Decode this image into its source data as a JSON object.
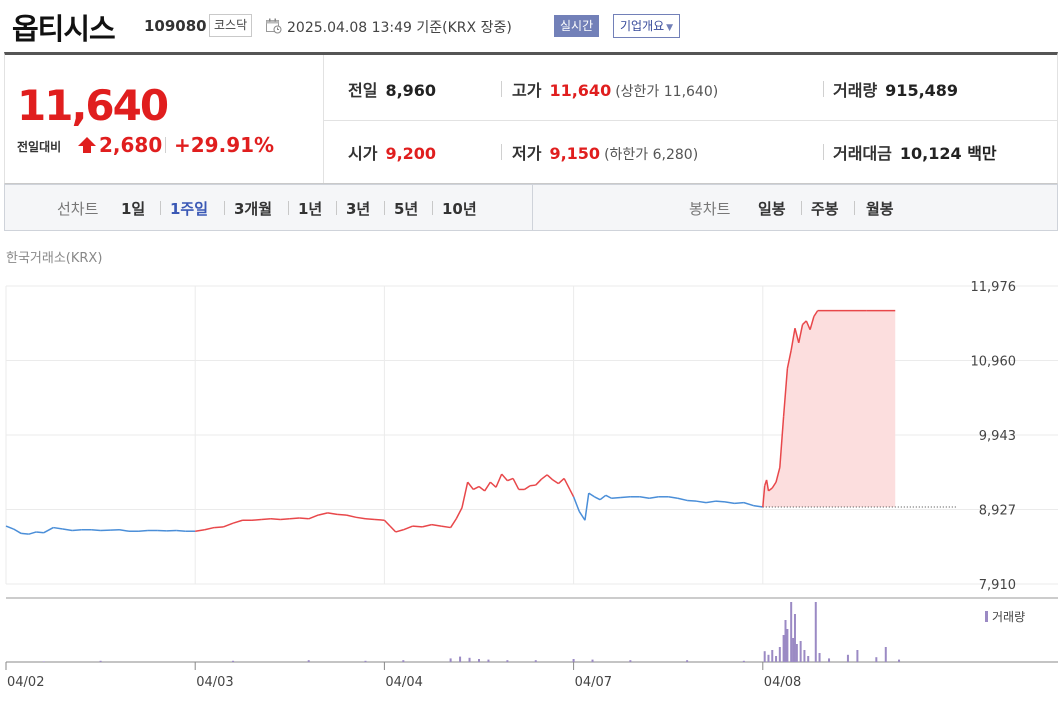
{
  "header": {
    "stock_name": "옵티시스",
    "stock_code": "109080",
    "market": "코스닥",
    "datetime": "2025.04.08 13:49  기준(KRX 장중)",
    "realtime_label": "실시간",
    "overview_label": "기업개요",
    "calendar_icon": "calendar-icon",
    "dropdown_icon": "caret-down-icon"
  },
  "quote": {
    "price": "11,640",
    "change_label": "전일대비",
    "change_icon": "upper-limit-arrow-icon",
    "change_value": "2,680",
    "change_pct": "+29.91%",
    "prev_close_label": "전일",
    "prev_close": "8,960",
    "open_label": "시가",
    "open": "9,200",
    "high_label": "고가",
    "high": "11,640",
    "upper_limit": "(상한가 11,640)",
    "low_label": "저가",
    "low": "9,150",
    "lower_limit": "(하한가 6,280)",
    "volume_label": "거래량",
    "volume": "915,489",
    "turnover_label": "거래대금",
    "turnover": "10,124 백만",
    "up_color": "#e01e1e",
    "down_color": "#2f6fd6"
  },
  "periods": {
    "line_label": "선차트",
    "line_items": [
      "1일",
      "1주일",
      "3개월",
      "1년",
      "3년",
      "5년",
      "10년"
    ],
    "line_selected": "1주일",
    "candle_label": "봉차트",
    "candle_items": [
      "일봉",
      "주봉",
      "월봉"
    ]
  },
  "chart_data": {
    "type": "line",
    "exchange_label": "한국거래소(KRX)",
    "yticks": [
      "11,976",
      "10,960",
      "9,943",
      "8,927",
      "7,910"
    ],
    "ylim": [
      7910,
      11976
    ],
    "prev_close_ref": 8960,
    "xticks": [
      "04/02",
      "04/03",
      "04/04",
      "04/07",
      "04/08"
    ],
    "volume_legend": "거래량",
    "up_color": "#e8474a",
    "down_color": "#4a8ed8",
    "fill_color": "#fcdede",
    "volume_color": "#9b8ac4",
    "price_points": [
      [
        0.0,
        8700
      ],
      [
        0.04,
        8660
      ],
      [
        0.08,
        8600
      ],
      [
        0.12,
        8590
      ],
      [
        0.16,
        8620
      ],
      [
        0.2,
        8610
      ],
      [
        0.25,
        8680
      ],
      [
        0.3,
        8660
      ],
      [
        0.35,
        8640
      ],
      [
        0.4,
        8650
      ],
      [
        0.45,
        8650
      ],
      [
        0.5,
        8640
      ],
      [
        0.55,
        8645
      ],
      [
        0.6,
        8650
      ],
      [
        0.65,
        8630
      ],
      [
        0.7,
        8630
      ],
      [
        0.75,
        8640
      ],
      [
        0.8,
        8640
      ],
      [
        0.85,
        8635
      ],
      [
        0.9,
        8640
      ],
      [
        0.95,
        8630
      ],
      [
        1.0,
        8630
      ],
      [
        1.05,
        8650
      ],
      [
        1.1,
        8680
      ],
      [
        1.15,
        8690
      ],
      [
        1.2,
        8740
      ],
      [
        1.25,
        8780
      ],
      [
        1.3,
        8780
      ],
      [
        1.35,
        8790
      ],
      [
        1.4,
        8800
      ],
      [
        1.45,
        8790
      ],
      [
        1.5,
        8800
      ],
      [
        1.55,
        8810
      ],
      [
        1.6,
        8800
      ],
      [
        1.65,
        8850
      ],
      [
        1.7,
        8880
      ],
      [
        1.75,
        8860
      ],
      [
        1.8,
        8850
      ],
      [
        1.85,
        8820
      ],
      [
        1.9,
        8800
      ],
      [
        1.95,
        8790
      ],
      [
        2.0,
        8780
      ],
      [
        2.03,
        8700
      ],
      [
        2.06,
        8620
      ],
      [
        2.1,
        8650
      ],
      [
        2.15,
        8700
      ],
      [
        2.2,
        8690
      ],
      [
        2.25,
        8720
      ],
      [
        2.3,
        8700
      ],
      [
        2.35,
        8680
      ],
      [
        2.38,
        8800
      ],
      [
        2.41,
        8950
      ],
      [
        2.44,
        9300
      ],
      [
        2.47,
        9200
      ],
      [
        2.5,
        9240
      ],
      [
        2.53,
        9180
      ],
      [
        2.56,
        9300
      ],
      [
        2.59,
        9230
      ],
      [
        2.62,
        9410
      ],
      [
        2.65,
        9320
      ],
      [
        2.68,
        9350
      ],
      [
        2.71,
        9200
      ],
      [
        2.74,
        9200
      ],
      [
        2.77,
        9250
      ],
      [
        2.8,
        9260
      ],
      [
        2.83,
        9340
      ],
      [
        2.86,
        9400
      ],
      [
        2.89,
        9330
      ],
      [
        2.92,
        9280
      ],
      [
        2.95,
        9350
      ],
      [
        2.98,
        9200
      ],
      [
        3.0,
        9100
      ],
      [
        3.03,
        8900
      ],
      [
        3.06,
        8780
      ],
      [
        3.08,
        9150
      ],
      [
        3.11,
        9100
      ],
      [
        3.14,
        9060
      ],
      [
        3.17,
        9120
      ],
      [
        3.2,
        9080
      ],
      [
        3.25,
        9090
      ],
      [
        3.3,
        9100
      ],
      [
        3.35,
        9100
      ],
      [
        3.4,
        9080
      ],
      [
        3.45,
        9100
      ],
      [
        3.5,
        9100
      ],
      [
        3.55,
        9080
      ],
      [
        3.6,
        9050
      ],
      [
        3.65,
        9040
      ],
      [
        3.7,
        9020
      ],
      [
        3.75,
        9040
      ],
      [
        3.8,
        9030
      ],
      [
        3.85,
        9010
      ],
      [
        3.9,
        9020
      ],
      [
        3.95,
        8980
      ],
      [
        4.0,
        8960
      ],
      [
        4.01,
        9250
      ],
      [
        4.02,
        9330
      ],
      [
        4.03,
        9180
      ],
      [
        4.05,
        9220
      ],
      [
        4.07,
        9300
      ],
      [
        4.09,
        9500
      ],
      [
        4.11,
        10200
      ],
      [
        4.13,
        10850
      ],
      [
        4.15,
        11100
      ],
      [
        4.17,
        11400
      ],
      [
        4.19,
        11200
      ],
      [
        4.21,
        11450
      ],
      [
        4.23,
        11500
      ],
      [
        4.25,
        11380
      ],
      [
        4.27,
        11560
      ],
      [
        4.29,
        11640
      ],
      [
        4.4,
        11640
      ],
      [
        4.55,
        11640
      ],
      [
        4.7,
        11640
      ]
    ],
    "volume_bars": [
      [
        0.2,
        0.01
      ],
      [
        0.5,
        0.02
      ],
      [
        1.2,
        0.02
      ],
      [
        1.6,
        0.03
      ],
      [
        1.9,
        0.02
      ],
      [
        2.1,
        0.03
      ],
      [
        2.35,
        0.06
      ],
      [
        2.4,
        0.09
      ],
      [
        2.45,
        0.07
      ],
      [
        2.5,
        0.05
      ],
      [
        2.55,
        0.04
      ],
      [
        2.65,
        0.03
      ],
      [
        2.8,
        0.03
      ],
      [
        3.0,
        0.05
      ],
      [
        3.1,
        0.04
      ],
      [
        3.3,
        0.03
      ],
      [
        3.6,
        0.03
      ],
      [
        3.9,
        0.02
      ],
      [
        4.01,
        0.18
      ],
      [
        4.03,
        0.12
      ],
      [
        4.05,
        0.2
      ],
      [
        4.07,
        0.1
      ],
      [
        4.09,
        0.25
      ],
      [
        4.11,
        0.45
      ],
      [
        4.12,
        0.7
      ],
      [
        4.13,
        0.55
      ],
      [
        4.15,
        1.0
      ],
      [
        4.16,
        0.4
      ],
      [
        4.17,
        0.8
      ],
      [
        4.18,
        0.3
      ],
      [
        4.2,
        0.35
      ],
      [
        4.22,
        0.2
      ],
      [
        4.24,
        0.1
      ],
      [
        4.28,
        1.0
      ],
      [
        4.3,
        0.15
      ],
      [
        4.35,
        0.06
      ],
      [
        4.45,
        0.12
      ],
      [
        4.5,
        0.2
      ],
      [
        4.6,
        0.08
      ],
      [
        4.65,
        0.25
      ],
      [
        4.72,
        0.04
      ]
    ]
  }
}
